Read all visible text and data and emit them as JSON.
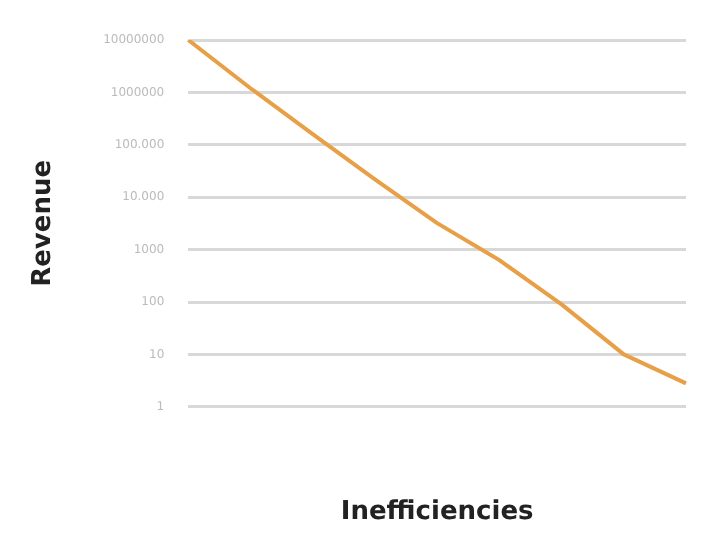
{
  "chart_data": {
    "type": "line",
    "xlabel": "Inefficiencies",
    "ylabel": "Revenue",
    "categories": [
      null,
      null,
      null,
      null,
      null,
      null,
      null,
      null,
      null
    ],
    "series": [
      {
        "color": "#e8a048",
        "values": [
          10000000,
          1200000,
          160000,
          22000,
          3200,
          630,
          90,
          10,
          2.8
        ]
      }
    ],
    "log": "y",
    "ylim": [
      1,
      10000000
    ],
    "yticks": [
      {
        "value": 10000000,
        "label": "10000000"
      },
      {
        "value": 1000000,
        "label": "1000000"
      },
      {
        "value": 100000,
        "label": "100.000"
      },
      {
        "value": 10000,
        "label": "10.000"
      },
      1000,
      100,
      10,
      1
    ],
    "grid": "y",
    "tick_labels": "y",
    "marker": "none",
    "legend": false
  }
}
